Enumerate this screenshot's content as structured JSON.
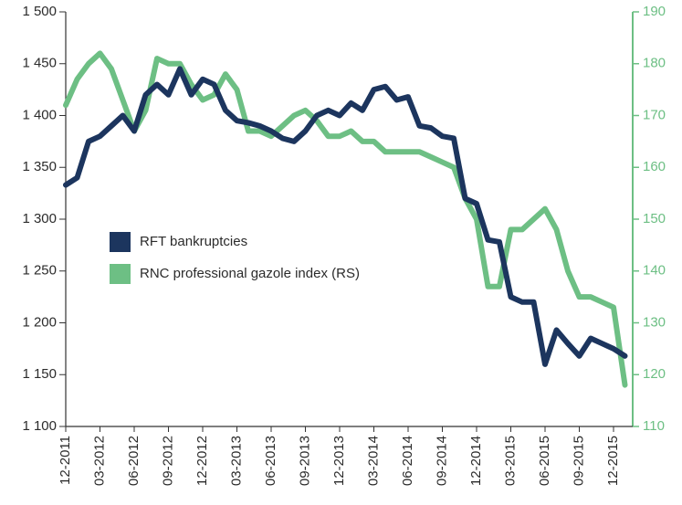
{
  "chart_data": {
    "type": "line",
    "categories": [
      "12-2011",
      null,
      null,
      "03-2012",
      null,
      null,
      "06-2012",
      null,
      null,
      "09-2012",
      null,
      null,
      "12-2012",
      null,
      null,
      "03-2013",
      null,
      null,
      "06-2013",
      null,
      null,
      "09-2013",
      null,
      null,
      "12-2013",
      null,
      null,
      "03-2014",
      null,
      null,
      "06-2014",
      null,
      null,
      "09-2014",
      null,
      null,
      "12-2014",
      null,
      null,
      "03-2015",
      null,
      null,
      "06-2015",
      null,
      null,
      "09-2015",
      null,
      null,
      "12-2015",
      null
    ],
    "series": [
      {
        "name": "RFT bankruptcies",
        "color": "#1c355e",
        "axis": "y",
        "values": [
          1333,
          1340,
          1375,
          1380,
          1390,
          1400,
          1385,
          1420,
          1430,
          1420,
          1445,
          1420,
          1435,
          1430,
          1405,
          1395,
          1393,
          1390,
          1385,
          1378,
          1375,
          1385,
          1400,
          1405,
          1400,
          1412,
          1405,
          1425,
          1428,
          1415,
          1418,
          1390,
          1388,
          1380,
          1378,
          1320,
          1315,
          1280,
          1278,
          1225,
          1220,
          1220,
          1160,
          1193,
          1180,
          1168,
          1185,
          1180,
          1175,
          1168
        ]
      },
      {
        "name": "RNC professional gazole index (RS)",
        "color": "#6dbf84",
        "axis": "y2",
        "values": [
          172,
          177,
          180,
          182,
          179,
          173,
          167,
          171,
          181,
          180,
          180,
          176,
          173,
          174,
          178,
          175,
          167,
          167,
          166,
          168,
          170,
          171,
          169,
          166,
          166,
          167,
          165,
          165,
          163,
          163,
          163,
          163,
          162,
          161,
          160,
          154,
          150,
          137,
          137,
          148,
          148,
          150,
          152,
          148,
          140,
          135,
          135,
          134,
          133,
          118
        ]
      }
    ],
    "ylim": [
      1100,
      1500
    ],
    "yticks": [
      {
        "value": 1100,
        "label": "1 100"
      },
      {
        "value": 1150,
        "label": "1 150"
      },
      {
        "value": 1200,
        "label": "1 200"
      },
      {
        "value": 1250,
        "label": "1 250"
      },
      {
        "value": 1300,
        "label": "1 300"
      },
      {
        "value": 1350,
        "label": "1 350"
      },
      {
        "value": 1400,
        "label": "1 400"
      },
      {
        "value": 1450,
        "label": "1 450"
      },
      {
        "value": 1500,
        "label": "1 500"
      }
    ],
    "y2lim": [
      110,
      190
    ],
    "y2ticks": [
      110,
      120,
      130,
      140,
      150,
      160,
      170,
      180,
      190
    ],
    "y2_color": "#6dbf84",
    "grid": false
  }
}
